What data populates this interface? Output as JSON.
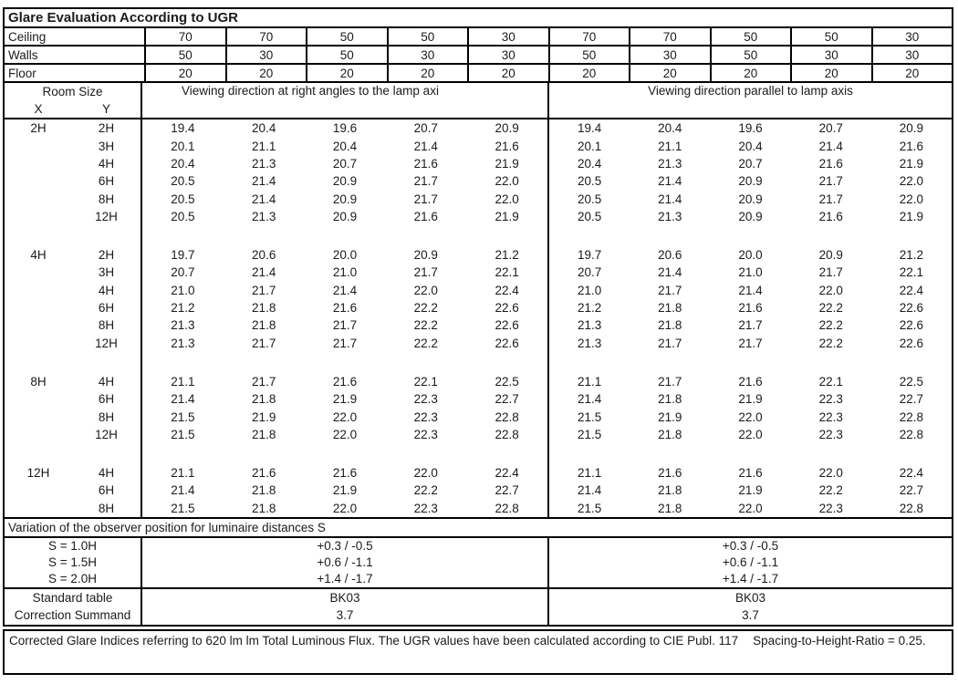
{
  "title": "Glare Evaluation According to UGR",
  "surfaces": {
    "rows": [
      {
        "label": "Ceiling",
        "values": [
          "70",
          "70",
          "50",
          "50",
          "30",
          "70",
          "70",
          "50",
          "50",
          "30"
        ]
      },
      {
        "label": "Walls",
        "values": [
          "50",
          "30",
          "50",
          "30",
          "30",
          "50",
          "30",
          "50",
          "30",
          "30"
        ]
      },
      {
        "label": "Floor",
        "values": [
          "20",
          "20",
          "20",
          "20",
          "20",
          "20",
          "20",
          "20",
          "20",
          "20"
        ]
      }
    ]
  },
  "header": {
    "room_size_label": "Room Size",
    "x_label": "X",
    "y_label": "Y",
    "left_heading": "Viewing direction at right angles to the lamp axi",
    "right_heading": "Viewing direction parallel to lamp axis"
  },
  "ugr_table": {
    "blocks": [
      {
        "x": "2H",
        "rows": [
          {
            "y": "2H",
            "left": [
              "19.4",
              "20.4",
              "19.6",
              "20.7",
              "20.9"
            ],
            "right": [
              "19.4",
              "20.4",
              "19.6",
              "20.7",
              "20.9"
            ]
          },
          {
            "y": "3H",
            "left": [
              "20.1",
              "21.1",
              "20.4",
              "21.4",
              "21.6"
            ],
            "right": [
              "20.1",
              "21.1",
              "20.4",
              "21.4",
              "21.6"
            ]
          },
          {
            "y": "4H",
            "left": [
              "20.4",
              "21.3",
              "20.7",
              "21.6",
              "21.9"
            ],
            "right": [
              "20.4",
              "21.3",
              "20.7",
              "21.6",
              "21.9"
            ]
          },
          {
            "y": "6H",
            "left": [
              "20.5",
              "21.4",
              "20.9",
              "21.7",
              "22.0"
            ],
            "right": [
              "20.5",
              "21.4",
              "20.9",
              "21.7",
              "22.0"
            ]
          },
          {
            "y": "8H",
            "left": [
              "20.5",
              "21.4",
              "20.9",
              "21.7",
              "22.0"
            ],
            "right": [
              "20.5",
              "21.4",
              "20.9",
              "21.7",
              "22.0"
            ]
          },
          {
            "y": "12H",
            "left": [
              "20.5",
              "21.3",
              "20.9",
              "21.6",
              "21.9"
            ],
            "right": [
              "20.5",
              "21.3",
              "20.9",
              "21.6",
              "21.9"
            ]
          }
        ]
      },
      {
        "x": "4H",
        "rows": [
          {
            "y": "2H",
            "left": [
              "19.7",
              "20.6",
              "20.0",
              "20.9",
              "21.2"
            ],
            "right": [
              "19.7",
              "20.6",
              "20.0",
              "20.9",
              "21.2"
            ]
          },
          {
            "y": "3H",
            "left": [
              "20.7",
              "21.4",
              "21.0",
              "21.7",
              "22.1"
            ],
            "right": [
              "20.7",
              "21.4",
              "21.0",
              "21.7",
              "22.1"
            ]
          },
          {
            "y": "4H",
            "left": [
              "21.0",
              "21.7",
              "21.4",
              "22.0",
              "22.4"
            ],
            "right": [
              "21.0",
              "21.7",
              "21.4",
              "22.0",
              "22.4"
            ]
          },
          {
            "y": "6H",
            "left": [
              "21.2",
              "21.8",
              "21.6",
              "22.2",
              "22.6"
            ],
            "right": [
              "21.2",
              "21.8",
              "21.6",
              "22.2",
              "22.6"
            ]
          },
          {
            "y": "8H",
            "left": [
              "21.3",
              "21.8",
              "21.7",
              "22.2",
              "22.6"
            ],
            "right": [
              "21.3",
              "21.8",
              "21.7",
              "22.2",
              "22.6"
            ]
          },
          {
            "y": "12H",
            "left": [
              "21.3",
              "21.7",
              "21.7",
              "22.2",
              "22.6"
            ],
            "right": [
              "21.3",
              "21.7",
              "21.7",
              "22.2",
              "22.6"
            ]
          }
        ]
      },
      {
        "x": "8H",
        "rows": [
          {
            "y": "4H",
            "left": [
              "21.1",
              "21.7",
              "21.6",
              "22.1",
              "22.5"
            ],
            "right": [
              "21.1",
              "21.7",
              "21.6",
              "22.1",
              "22.5"
            ]
          },
          {
            "y": "6H",
            "left": [
              "21.4",
              "21.8",
              "21.9",
              "22.3",
              "22.7"
            ],
            "right": [
              "21.4",
              "21.8",
              "21.9",
              "22.3",
              "22.7"
            ]
          },
          {
            "y": "8H",
            "left": [
              "21.5",
              "21.9",
              "22.0",
              "22.3",
              "22.8"
            ],
            "right": [
              "21.5",
              "21.9",
              "22.0",
              "22.3",
              "22.8"
            ]
          },
          {
            "y": "12H",
            "left": [
              "21.5",
              "21.8",
              "22.0",
              "22.3",
              "22.8"
            ],
            "right": [
              "21.5",
              "21.8",
              "22.0",
              "22.3",
              "22.8"
            ]
          }
        ]
      },
      {
        "x": "12H",
        "rows": [
          {
            "y": "4H",
            "left": [
              "21.1",
              "21.6",
              "21.6",
              "22.0",
              "22.4"
            ],
            "right": [
              "21.1",
              "21.6",
              "21.6",
              "22.0",
              "22.4"
            ]
          },
          {
            "y": "6H",
            "left": [
              "21.4",
              "21.8",
              "21.9",
              "22.2",
              "22.7"
            ],
            "right": [
              "21.4",
              "21.8",
              "21.9",
              "22.2",
              "22.7"
            ]
          },
          {
            "y": "8H",
            "left": [
              "21.5",
              "21.8",
              "22.0",
              "22.3",
              "22.8"
            ],
            "right": [
              "21.5",
              "21.8",
              "22.0",
              "22.3",
              "22.8"
            ]
          }
        ]
      }
    ]
  },
  "variation": {
    "heading": "Variation of the observer position for luminaire distances S",
    "rows": [
      {
        "label": "S = 1.0H",
        "left": "+0.3 / -0.5",
        "right": "+0.3 / -0.5"
      },
      {
        "label": "S = 1.5H",
        "left": "+0.6 / -1.1",
        "right": "+0.6 / -1.1"
      },
      {
        "label": "S = 2.0H",
        "left": "+1.4 / -1.7",
        "right": "+1.4 / -1.7"
      }
    ]
  },
  "summary": {
    "rows": [
      {
        "label": "Standard table",
        "left": "BK03",
        "right": "BK03"
      },
      {
        "label": "Correction Summand",
        "left": "3.7",
        "right": "3.7"
      }
    ]
  },
  "footer": {
    "text_main": "Corrected Glare Indices referring to 620 lm lm Total Luminous Flux. The UGR values have been calculated according to CIE Publ. 117",
    "text_ratio": "Spacing-to-Height-Ratio = 0.25."
  }
}
